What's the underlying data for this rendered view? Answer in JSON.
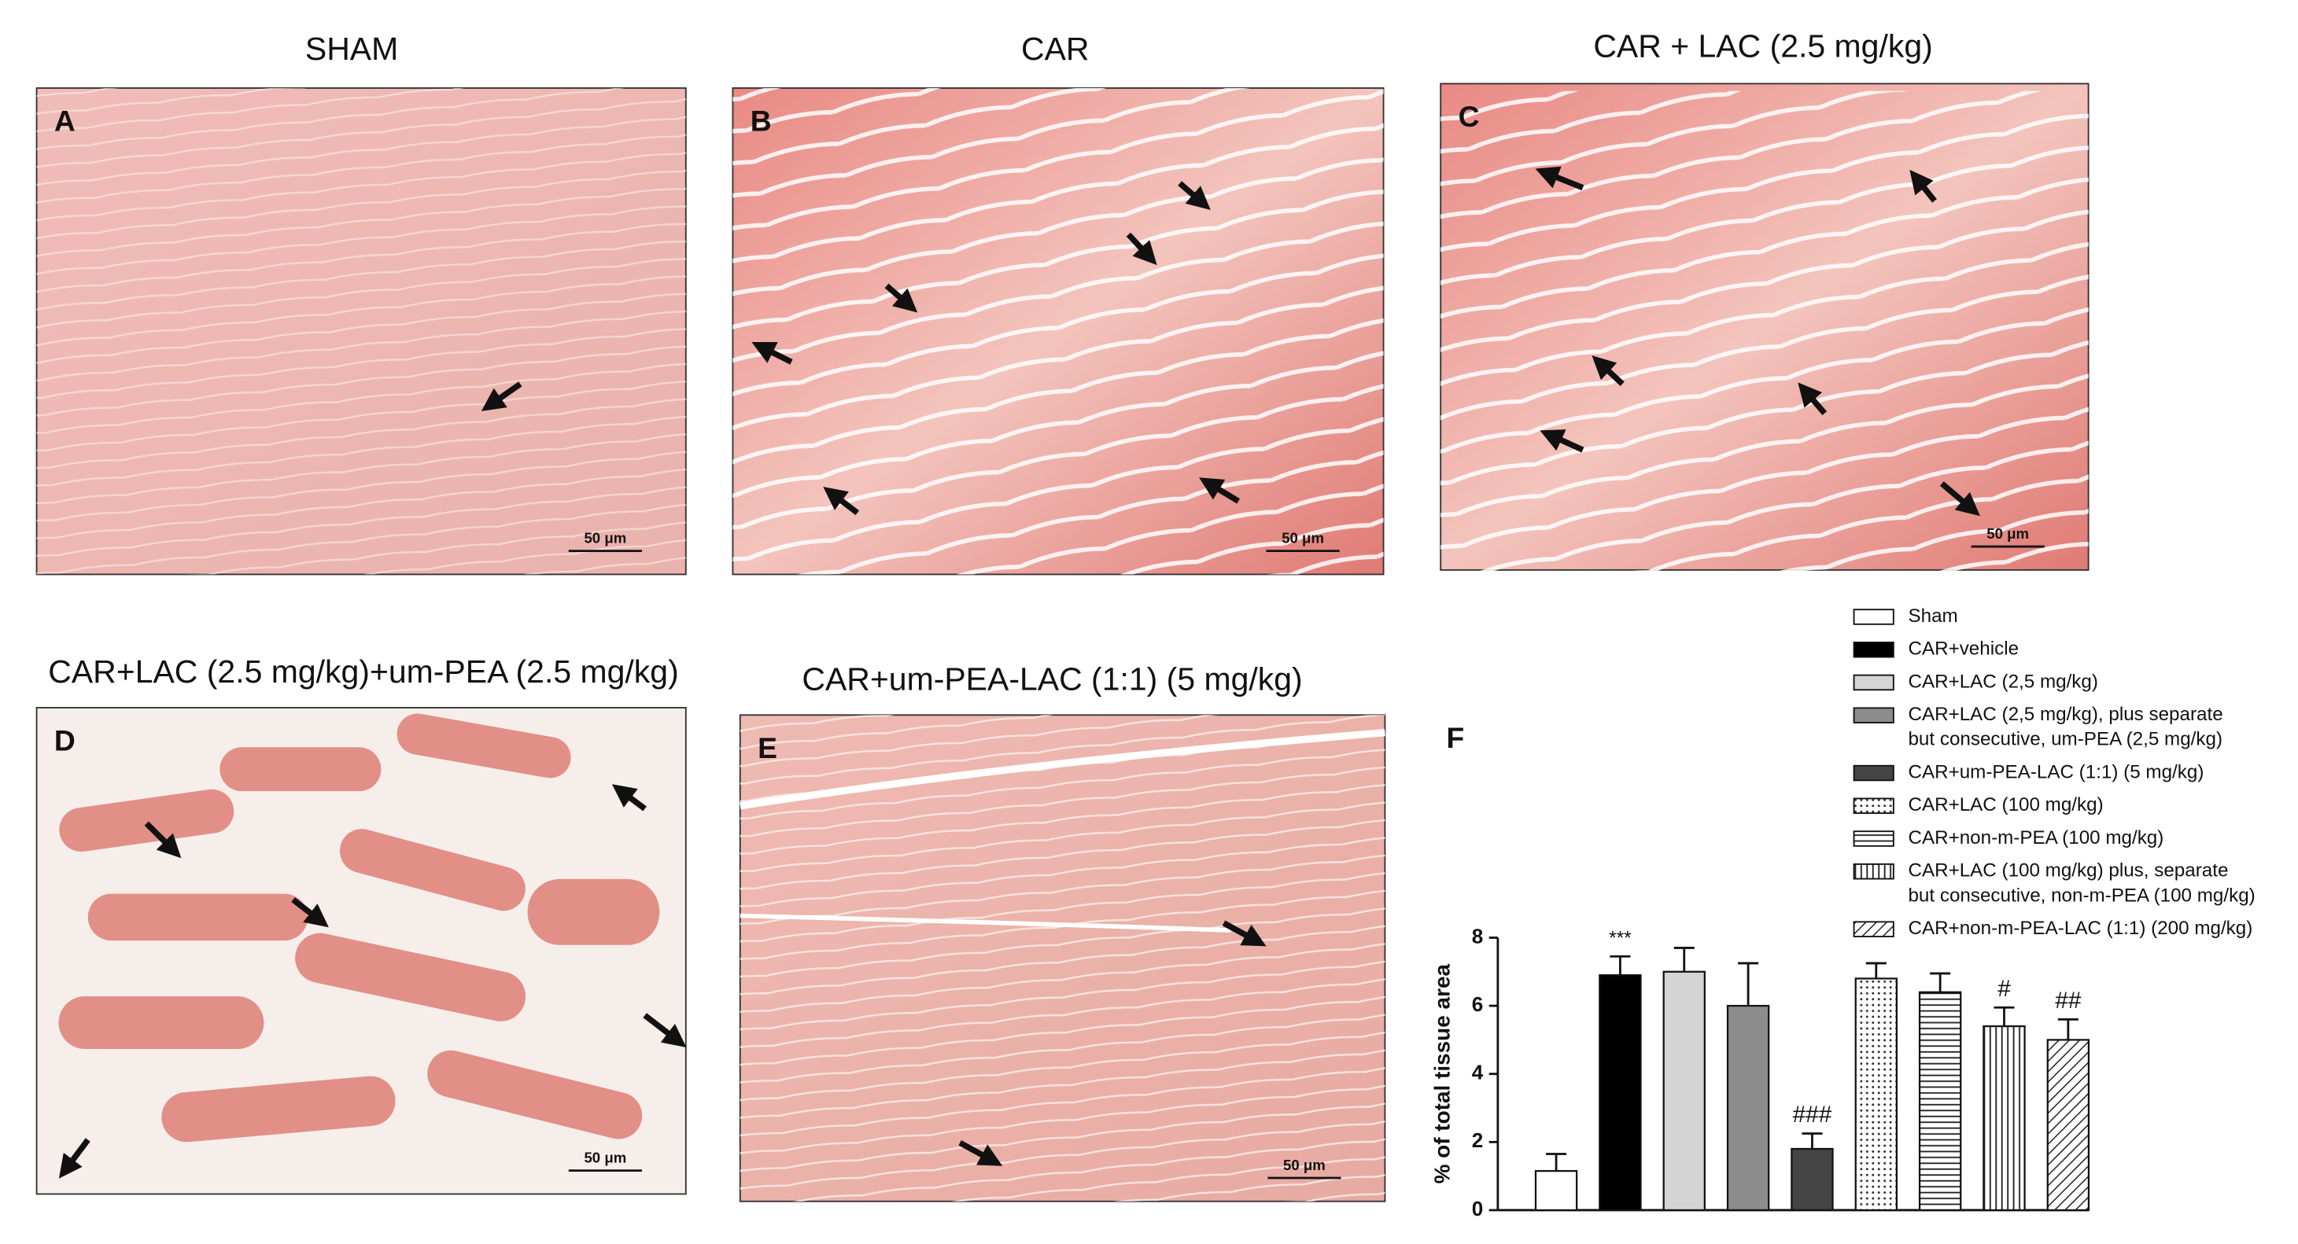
{
  "panels": [
    {
      "letter": "A",
      "title": "SHAM",
      "scale_bar": "50 μm"
    },
    {
      "letter": "B",
      "title": "CAR",
      "scale_bar": "50 μm"
    },
    {
      "letter": "C",
      "title": "CAR + LAC (2.5 mg/kg)",
      "scale_bar": "50 μm"
    },
    {
      "letter": "D",
      "title": "CAR+LAC (2.5 mg/kg)+um-PEA (2.5 mg/kg)",
      "scale_bar": "50 μm"
    },
    {
      "letter": "E",
      "title": "CAR+um-PEA-LAC (1:1) (5 mg/kg)",
      "scale_bar": "50 μm"
    }
  ],
  "chart_data": {
    "type": "bar",
    "letter": "F",
    "y_label": "% of total tissue area",
    "ylim": [
      0,
      8
    ],
    "yticks": [
      0,
      2,
      4,
      6,
      8
    ],
    "series": [
      {
        "name": [
          "Sham"
        ],
        "color": "#ffffff",
        "pattern": null,
        "values": [
          1.15
        ],
        "errors": [
          0.5
        ]
      },
      {
        "name": [
          "CAR+vehicle"
        ],
        "color": "#000000",
        "pattern": null,
        "values": [
          6.9
        ],
        "errors": [
          0.55
        ],
        "annotation": "***"
      },
      {
        "name": [
          "CAR+LAC (2,5 mg/kg)"
        ],
        "color": "#d4d4d4",
        "pattern": null,
        "values": [
          7.0
        ],
        "errors": [
          0.7
        ]
      },
      {
        "name": [
          "CAR+LAC (2,5 mg/kg), plus separate",
          "but consecutive, um-PEA (2,5 mg/kg)"
        ],
        "color": "#8c8c8c",
        "pattern": null,
        "values": [
          6.0
        ],
        "errors": [
          1.25
        ]
      },
      {
        "name": [
          "CAR+um-PEA-LAC (1:1) (5 mg/kg)"
        ],
        "color": "#444444",
        "pattern": null,
        "values": [
          1.8
        ],
        "errors": [
          0.45
        ],
        "annotation": "###"
      },
      {
        "name": [
          "CAR+LAC (100 mg/kg)"
        ],
        "color": "#ffffff",
        "pattern": "dots",
        "values": [
          6.8
        ],
        "errors": [
          0.45
        ]
      },
      {
        "name": [
          "CAR+non-m-PEA (100 mg/kg)"
        ],
        "color": "#ffffff",
        "pattern": "hlines",
        "values": [
          6.4
        ],
        "errors": [
          0.55
        ]
      },
      {
        "name": [
          "CAR+LAC (100 mg/kg) plus, separate",
          "but consecutive, non-m-PEA (100 mg/kg)"
        ],
        "color": "#ffffff",
        "pattern": "vlines",
        "values": [
          5.4
        ],
        "errors": [
          0.55
        ],
        "annotation": "#"
      },
      {
        "name": [
          "CAR+non-m-PEA-LAC (1:1) (200 mg/kg)"
        ],
        "color": "#ffffff",
        "pattern": "diagonal",
        "values": [
          5.0
        ],
        "errors": [
          0.6
        ],
        "annotation": "##"
      }
    ]
  }
}
